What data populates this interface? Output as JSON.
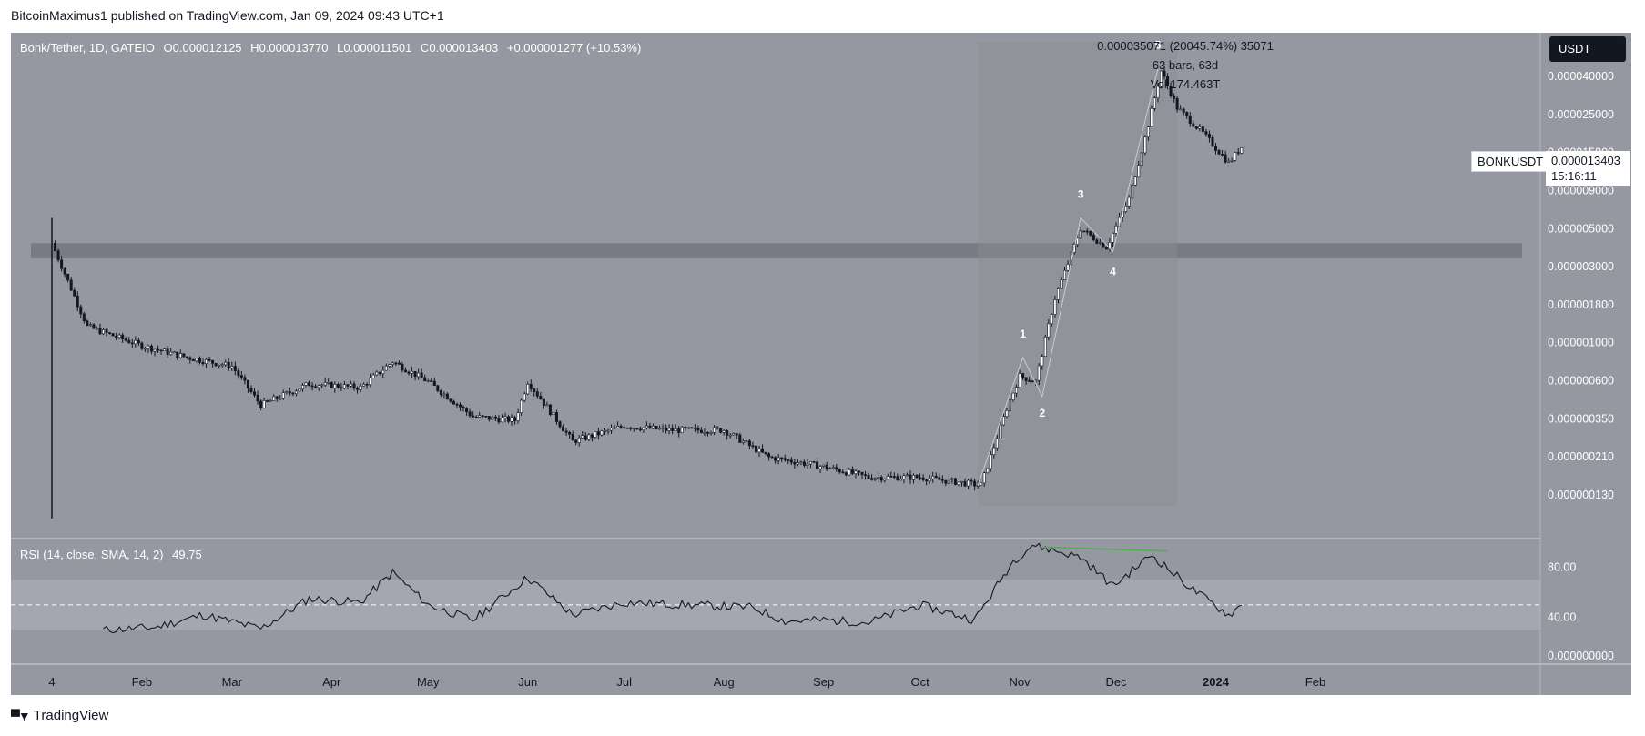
{
  "publisher": "BitcoinMaximus1 published on TradingView.com, Jan 09, 2024 09:43 UTC+1",
  "legend": {
    "symbol": "Bonk/Tether, 1D, GATEIO",
    "o_label": "O",
    "o": "0.000012125",
    "h_label": "H",
    "h": "0.000013770",
    "l_label": "L",
    "l": "0.000011501",
    "c_label": "C",
    "c": "0.000013403",
    "change": "+0.000001277 (+10.53%)"
  },
  "measure": {
    "line1": "0.000035071 (20045.74%) 35071",
    "line2": "63 bars, 63d",
    "line3": "Vol 174.463T"
  },
  "currency_button": "USDT",
  "ticker_tag": "BONKUSDT",
  "price_tag": {
    "price": "0.000013403",
    "countdown": "15:16:11"
  },
  "rsi_legend": {
    "label": "RSI (14, close, SMA, 14, 2)",
    "value": "49.75"
  },
  "brand": "TradingView",
  "colors": {
    "background": "#9598a1",
    "candle": "#131722",
    "rsi_line": "#131722",
    "divergence": "#4caf50",
    "resistance": "#6f7279"
  },
  "chart_data": {
    "type": "candlestick",
    "price_scale": "log",
    "price_axis_labels": [
      "0.000040000",
      "0.000025000",
      "0.000015000",
      "0.000009000",
      "0.000005000",
      "0.000003000",
      "0.000001800",
      "0.000001000",
      "0.000000600",
      "0.000000350",
      "0.000000210",
      "0.000000130"
    ],
    "rsi_axis_labels": [
      "80.00",
      "40.00"
    ],
    "lower_axis_label": "0.000000000",
    "time_axis_labels": [
      "4",
      "Feb",
      "Mar",
      "Apr",
      "May",
      "Jun",
      "Jul",
      "Aug",
      "Sep",
      "Oct",
      "Nov",
      "Dec",
      "2024",
      "Feb"
    ],
    "wave_labels": [
      "1",
      "2",
      "3",
      "4",
      "5"
    ],
    "resistance_zone": [
      3.3e-06,
      4e-06
    ],
    "rsi_band": [
      30,
      70
    ],
    "rsi_midline": 50,
    "series": [
      {
        "date": "2023-01-04",
        "close": 4e-06
      },
      {
        "date": "2023-01-15",
        "close": 1.4e-06
      },
      {
        "date": "2023-02-01",
        "close": 1.1e-06
      },
      {
        "date": "2023-02-15",
        "close": 9.5e-07
      },
      {
        "date": "2023-03-01",
        "close": 8.5e-07
      },
      {
        "date": "2023-03-10",
        "close": 5.2e-07
      },
      {
        "date": "2023-03-25",
        "close": 6.8e-07
      },
      {
        "date": "2023-04-10",
        "close": 6.5e-07
      },
      {
        "date": "2023-04-20",
        "close": 9e-07
      },
      {
        "date": "2023-05-01",
        "close": 7e-07
      },
      {
        "date": "2023-05-15",
        "close": 4.5e-07
      },
      {
        "date": "2023-05-28",
        "close": 4.3e-07
      },
      {
        "date": "2023-06-01",
        "close": 7e-07
      },
      {
        "date": "2023-06-15",
        "close": 3.3e-07
      },
      {
        "date": "2023-07-01",
        "close": 4e-07
      },
      {
        "date": "2023-07-15",
        "close": 3.8e-07
      },
      {
        "date": "2023-08-01",
        "close": 3.8e-07
      },
      {
        "date": "2023-08-15",
        "close": 2.7e-07
      },
      {
        "date": "2023-09-01",
        "close": 2.4e-07
      },
      {
        "date": "2023-09-15",
        "close": 2.1e-07
      },
      {
        "date": "2023-10-01",
        "close": 2.1e-07
      },
      {
        "date": "2023-10-20",
        "close": 1.9e-07
      },
      {
        "date": "2023-10-28",
        "close": 5e-07
      },
      {
        "date": "2023-11-01",
        "close": 7.5e-07
      },
      {
        "date": "2023-11-06",
        "close": 7e-07
      },
      {
        "date": "2023-11-12",
        "close": 2e-06
      },
      {
        "date": "2023-11-20",
        "close": 4.8e-06
      },
      {
        "date": "2023-11-28",
        "close": 3.8e-06
      },
      {
        "date": "2023-12-05",
        "close": 7e-06
      },
      {
        "date": "2023-12-10",
        "close": 1.5e-05
      },
      {
        "date": "2023-12-15",
        "close": 3.5e-05
      },
      {
        "date": "2023-12-20",
        "close": 2.2e-05
      },
      {
        "date": "2023-12-28",
        "close": 1.6e-05
      },
      {
        "date": "2024-01-05",
        "close": 1.1e-05
      },
      {
        "date": "2024-01-09",
        "close": 1.3403e-05
      }
    ],
    "rsi": [
      {
        "date": "2023-01-20",
        "value": 30
      },
      {
        "date": "2023-02-05",
        "value": 32
      },
      {
        "date": "2023-02-20",
        "value": 42
      },
      {
        "date": "2023-03-10",
        "value": 31
      },
      {
        "date": "2023-03-25",
        "value": 55
      },
      {
        "date": "2023-04-10",
        "value": 52
      },
      {
        "date": "2023-04-20",
        "value": 76
      },
      {
        "date": "2023-05-01",
        "value": 50
      },
      {
        "date": "2023-05-15",
        "value": 38
      },
      {
        "date": "2023-06-01",
        "value": 72
      },
      {
        "date": "2023-06-15",
        "value": 42
      },
      {
        "date": "2023-07-01",
        "value": 52
      },
      {
        "date": "2023-07-20",
        "value": 50
      },
      {
        "date": "2023-08-10",
        "value": 48
      },
      {
        "date": "2023-08-20",
        "value": 37
      },
      {
        "date": "2023-09-01",
        "value": 38
      },
      {
        "date": "2023-09-15",
        "value": 36
      },
      {
        "date": "2023-10-01",
        "value": 50
      },
      {
        "date": "2023-10-18",
        "value": 38
      },
      {
        "date": "2023-10-30",
        "value": 85
      },
      {
        "date": "2023-11-05",
        "value": 98
      },
      {
        "date": "2023-11-20",
        "value": 88
      },
      {
        "date": "2023-11-30",
        "value": 65
      },
      {
        "date": "2023-12-12",
        "value": 90
      },
      {
        "date": "2023-12-25",
        "value": 62
      },
      {
        "date": "2024-01-05",
        "value": 42
      },
      {
        "date": "2024-01-09",
        "value": 49.75
      }
    ],
    "divergence_line": [
      {
        "date": "2023-11-08",
        "value": 96
      },
      {
        "date": "2023-12-17",
        "value": 93
      }
    ]
  }
}
